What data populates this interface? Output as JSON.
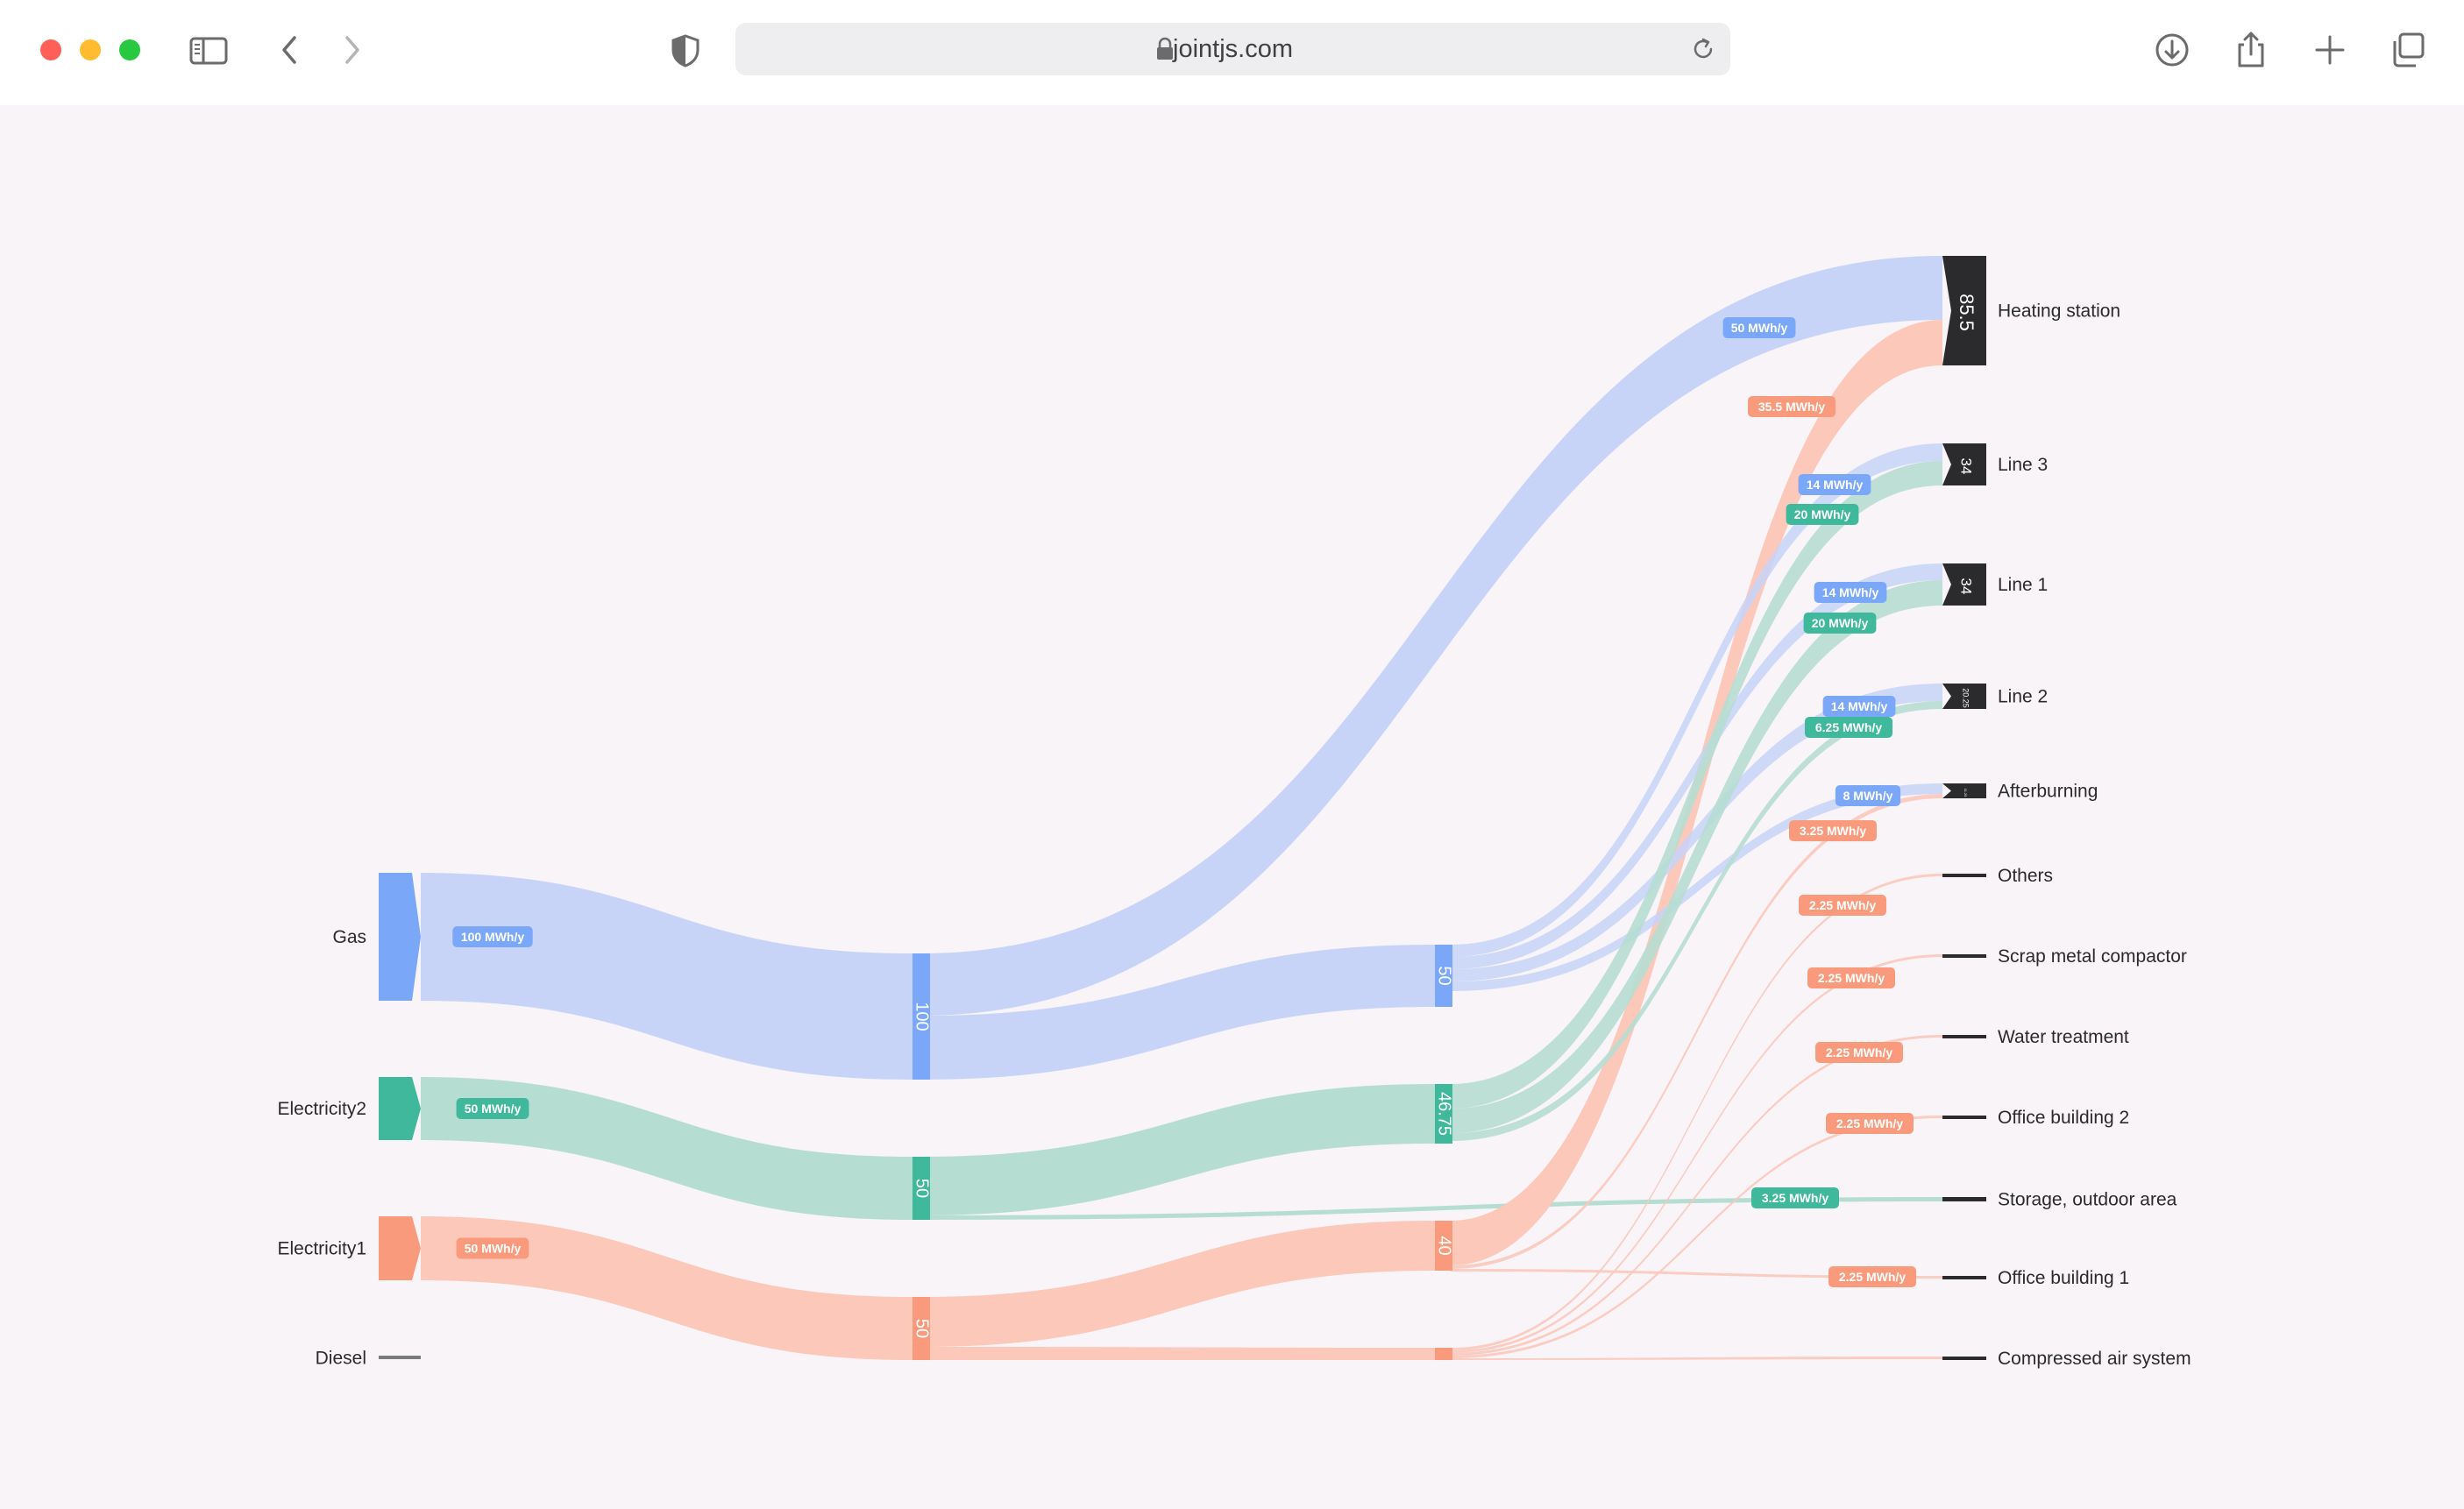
{
  "browser": {
    "url": "jointjs.com",
    "icons": [
      "sidebar-icon",
      "back-icon",
      "forward-icon",
      "shield-icon",
      "lock-icon",
      "reload-icon",
      "download-icon",
      "share-icon",
      "new-tab-icon",
      "tabs-overview-icon"
    ]
  },
  "colors": {
    "gas": "#7aa7f8",
    "gas_link": "#c7d4f8",
    "electricity2": "#3fb89c",
    "electricity2_link": "#b6ddd2",
    "electricity1": "#fa9a7c",
    "electricity1_link": "#fbc8ba",
    "diesel": "#7a7a7a",
    "target": "#2b2a2c"
  },
  "sources": [
    {
      "name": "Gas",
      "flow": "100 MWh/y",
      "color": "gas"
    },
    {
      "name": "Electricity2",
      "flow": "50 MWh/y",
      "color": "electricity2"
    },
    {
      "name": "Electricity1",
      "flow": "50 MWh/y",
      "color": "electricity1"
    },
    {
      "name": "Diesel",
      "flow": "",
      "color": "diesel"
    }
  ],
  "middle_nodes": [
    {
      "value": "100",
      "color": "gas"
    },
    {
      "value": "50",
      "color": "electricity2"
    },
    {
      "value": "50",
      "color": "electricity1"
    }
  ],
  "third_nodes": [
    {
      "value": "50",
      "color": "gas"
    },
    {
      "value": "46.75",
      "color": "electricity2"
    },
    {
      "value": "40",
      "color": "electricity1"
    },
    {
      "value": "",
      "color": "electricity1"
    }
  ],
  "targets": [
    {
      "name": "Heating station",
      "value": "85.5"
    },
    {
      "name": "Line 3",
      "value": "34"
    },
    {
      "name": "Line 1",
      "value": "34"
    },
    {
      "name": "Line 2",
      "value": "20.25"
    },
    {
      "name": "Afterburning",
      "value": "11.25"
    },
    {
      "name": "Others",
      "value": ""
    },
    {
      "name": "Scrap metal compactor",
      "value": ""
    },
    {
      "name": "Water treatment",
      "value": ""
    },
    {
      "name": "Office building 2",
      "value": ""
    },
    {
      "name": "Storage, outdoor area",
      "value": ""
    },
    {
      "name": "Office building 1",
      "value": ""
    },
    {
      "name": "Compressed air system",
      "value": ""
    }
  ],
  "flow_labels": [
    {
      "text": "50 MWh/y",
      "color": "gas"
    },
    {
      "text": "35.5 MWh/y",
      "color": "electricity1"
    },
    {
      "text": "14 MWh/y",
      "color": "gas"
    },
    {
      "text": "20 MWh/y",
      "color": "electricity2"
    },
    {
      "text": "14 MWh/y",
      "color": "gas"
    },
    {
      "text": "20 MWh/y",
      "color": "electricity2"
    },
    {
      "text": "14 MWh/y",
      "color": "gas"
    },
    {
      "text": "6.25 MWh/y",
      "color": "electricity2"
    },
    {
      "text": "8 MWh/y",
      "color": "gas"
    },
    {
      "text": "3.25 MWh/y",
      "color": "electricity1"
    },
    {
      "text": "2.25 MWh/y",
      "color": "electricity1"
    },
    {
      "text": "2.25 MWh/y",
      "color": "electricity1"
    },
    {
      "text": "2.25 MWh/y",
      "color": "electricity1"
    },
    {
      "text": "2.25 MWh/y",
      "color": "electricity1"
    },
    {
      "text": "3.25 MWh/y",
      "color": "electricity2"
    },
    {
      "text": "2.25 MWh/y",
      "color": "electricity1"
    }
  ]
}
